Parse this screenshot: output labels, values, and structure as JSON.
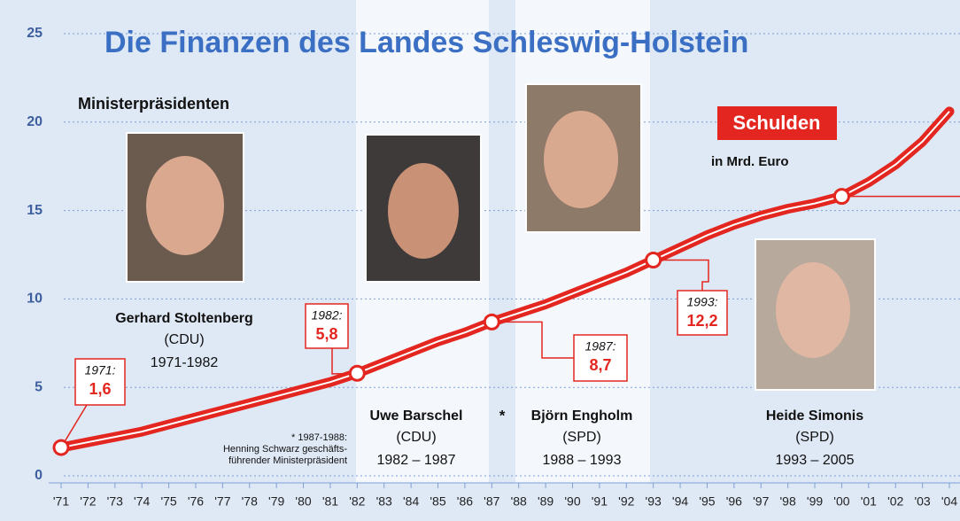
{
  "chart_data": {
    "type": "line",
    "title": "Die Finanzen des Landes Schleswig-Holstein",
    "unit": "in Mrd. Euro",
    "categories": [
      "'71",
      "'72",
      "'73",
      "'74",
      "'75",
      "'76",
      "'77",
      "'78",
      "'79",
      "'80",
      "'81",
      "'82",
      "'83",
      "'84",
      "'85",
      "'86",
      "'87",
      "'88",
      "'89",
      "'90",
      "'91",
      "'92",
      "'93",
      "'94",
      "'95",
      "'96",
      "'97",
      "'98",
      "'99",
      "'00",
      "'01",
      "'02",
      "'03",
      "'04"
    ],
    "series": [
      {
        "name": "Schulden",
        "color": "#e3261f",
        "values": [
          1.6,
          1.9,
          2.2,
          2.5,
          2.9,
          3.3,
          3.7,
          4.1,
          4.5,
          4.9,
          5.3,
          5.8,
          6.4,
          7.0,
          7.6,
          8.1,
          8.7,
          9.2,
          9.7,
          10.3,
          10.9,
          11.5,
          12.2,
          12.9,
          13.6,
          14.2,
          14.7,
          15.1,
          15.4,
          15.8,
          16.6,
          17.6,
          18.9,
          20.6
        ],
        "value_labels": [
          "1,6",
          null,
          null,
          null,
          null,
          null,
          null,
          null,
          null,
          null,
          null,
          "5,8",
          null,
          null,
          null,
          null,
          "8,7",
          null,
          null,
          null,
          null,
          null,
          "12,2",
          null,
          null,
          null,
          null,
          null,
          null,
          null,
          null,
          null,
          null,
          null
        ],
        "label_years": [
          "1971:",
          null,
          null,
          null,
          null,
          null,
          null,
          null,
          null,
          null,
          null,
          "1982:",
          null,
          null,
          null,
          null,
          "1987:",
          null,
          null,
          null,
          null,
          null,
          "1993:",
          null,
          null,
          null,
          null,
          null,
          null,
          null,
          null,
          null,
          null,
          null
        ]
      }
    ],
    "ylim": [
      0,
      25
    ],
    "yticks": [
      0,
      5,
      10,
      15,
      20,
      25
    ],
    "grid": true
  },
  "heading": "Ministerpräsidenten",
  "ministers": [
    {
      "name": "Gerhard Stoltenberg",
      "party": "(CDU)",
      "term": "1971-1982"
    },
    {
      "name": "Uwe Barschel",
      "party": "(CDU)",
      "term": "1982 – 1987"
    },
    {
      "name": "Björn Engholm",
      "party": "(SPD)",
      "term": "1988 – 1993"
    },
    {
      "name": "Heide Simonis",
      "party": "(SPD)",
      "term": "1993 – 2005"
    }
  ],
  "footnote_mark": "*",
  "footnote": [
    "* 1987-1988:",
    "Henning Schwarz geschäfts-",
    "führender Ministerpräsident"
  ]
}
